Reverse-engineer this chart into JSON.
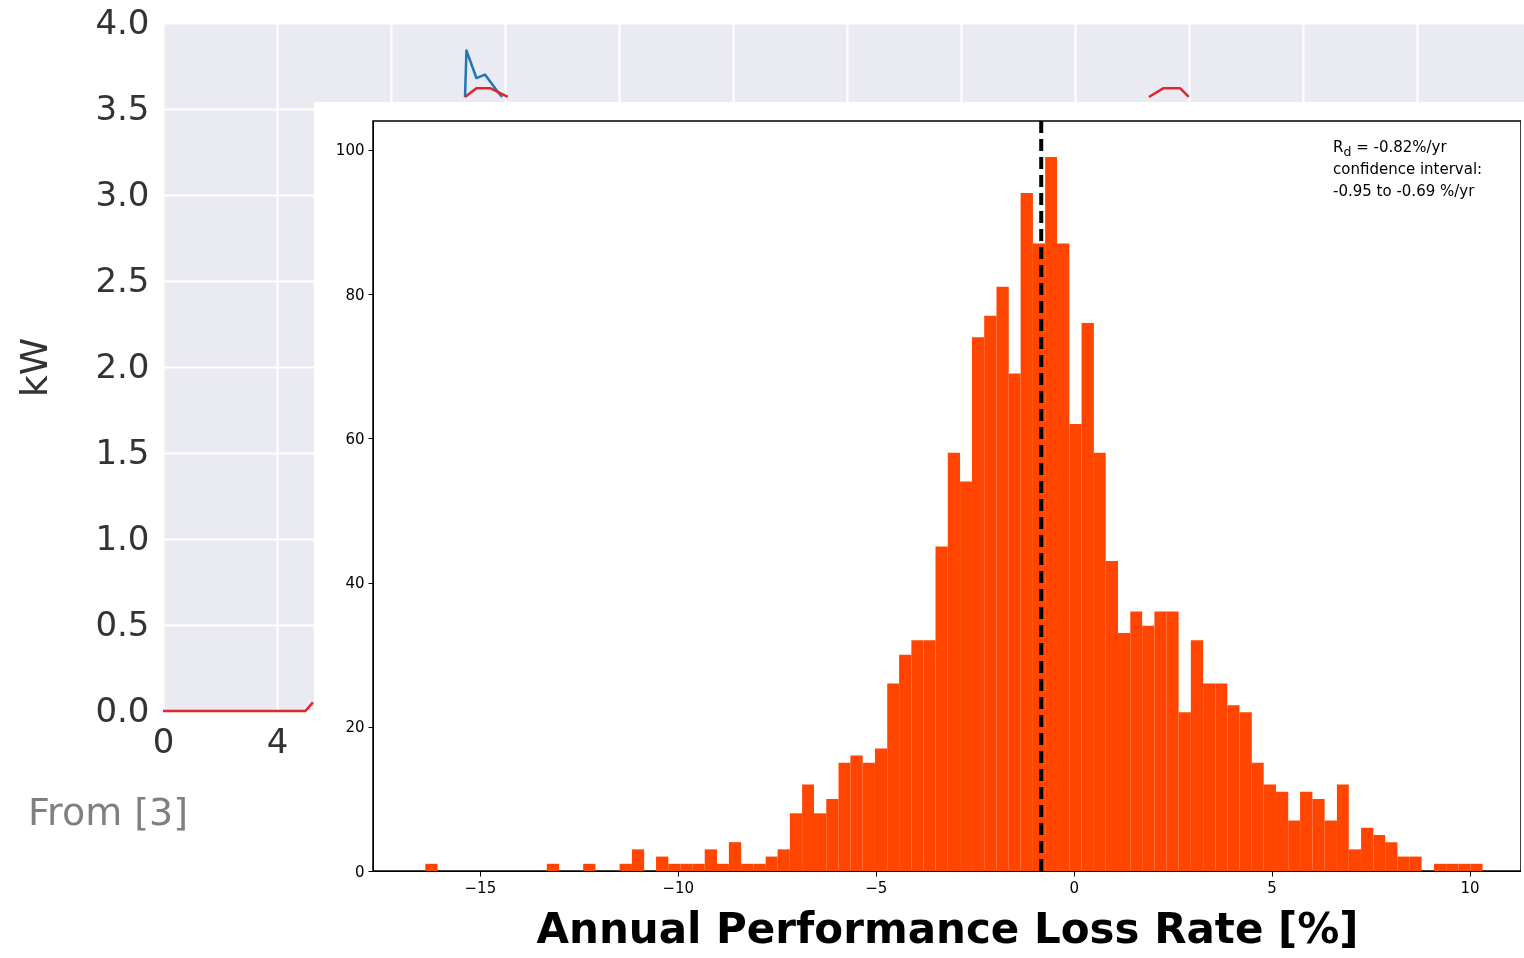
{
  "chart_data": [
    {
      "type": "line",
      "ylabel": "kW",
      "xlim": [
        0,
        47.8
      ],
      "ylim": [
        0,
        4
      ],
      "xticks": [
        0,
        4,
        {
          "value": 8,
          "label": null
        },
        {
          "value": 12,
          "label": null
        },
        {
          "value": 16,
          "label": null
        },
        {
          "value": 20,
          "label": null
        },
        {
          "value": 24,
          "label": null
        },
        {
          "value": 28,
          "label": null
        },
        {
          "value": 32,
          "label": null
        },
        {
          "value": 36,
          "label": null
        },
        {
          "value": 40,
          "label": null
        },
        {
          "value": 44,
          "label": null
        }
      ],
      "yticks": [
        {
          "value": 0,
          "label": "0.0"
        },
        {
          "value": 0.5,
          "label": "0.5"
        },
        {
          "value": 1,
          "label": "1.0"
        },
        {
          "value": 1.5,
          "label": "1.5"
        },
        {
          "value": 2,
          "label": "2.0"
        },
        {
          "value": 2.5,
          "label": "2.5"
        },
        {
          "value": 3,
          "label": "3.0"
        },
        {
          "value": 3.5,
          "label": "3.5"
        },
        {
          "value": 4,
          "label": "4.0"
        }
      ],
      "grid": true,
      "series": [
        {
          "color": "#1f77b4",
          "x": [
            10.6,
            10.65,
            11.0,
            11.3,
            11.7,
            11.9
          ],
          "values": [
            3.57,
            3.84,
            3.68,
            3.7,
            3.61,
            3.57
          ]
        },
        {
          "color": "#e3242b",
          "x": [
            0,
            5.0,
            5.26,
            8,
            10.6,
            11.0,
            11.5,
            12.1,
            20,
            34.6,
            35.1,
            35.7,
            36.0
          ],
          "values": [
            0,
            0,
            0.05,
            null,
            3.57,
            3.62,
            3.62,
            3.57,
            null,
            3.57,
            3.62,
            3.62,
            3.57
          ]
        }
      ],
      "annotations": [
        "From [3]"
      ]
    },
    {
      "type": "histogram",
      "xlabel": "Annual Performance Loss Rate [%]",
      "xlim": [
        -17.7,
        11.3
      ],
      "ylim": [
        0,
        104
      ],
      "xticks": [
        {
          "value": -15,
          "label": "−15"
        },
        {
          "value": -10,
          "label": "−10"
        },
        {
          "value": -5,
          "label": "−5"
        },
        0,
        5,
        10
      ],
      "yticks": [
        0,
        20,
        40,
        60,
        80,
        100
      ],
      "color": "#ff4500",
      "bins": [
        -16.38,
        -16.07,
        -15.77,
        -15.46,
        -15.15,
        -14.85,
        -14.54,
        -14.23,
        -13.92,
        -13.62,
        -13.31,
        -13.0,
        -12.7,
        -12.39,
        -12.08,
        -11.78,
        -11.47,
        -11.16,
        -10.85,
        -10.55,
        -10.24,
        -9.93,
        -9.63,
        -9.32,
        -9.01,
        -8.71,
        -8.4,
        -8.09,
        -7.78,
        -7.48,
        -7.17,
        -6.86,
        -6.56,
        -6.25,
        -5.94,
        -5.64,
        -5.33,
        -5.02,
        -4.71,
        -4.41,
        -4.1,
        -3.79,
        -3.49,
        -3.18,
        -2.87,
        -2.57,
        -2.26,
        -1.95,
        -1.64,
        -1.34,
        -1.03,
        -0.72,
        -0.42,
        -0.11,
        0.2,
        0.51,
        0.81,
        1.12,
        1.43,
        1.73,
        2.04,
        2.35,
        2.65,
        2.96,
        3.27,
        3.58,
        3.88,
        4.19,
        4.5,
        4.8,
        5.11,
        5.42,
        5.72,
        6.03,
        6.34,
        6.65,
        6.95,
        7.26,
        7.57,
        7.87,
        8.18,
        8.49,
        8.79,
        9.1,
        9.41,
        9.72,
        10.02,
        10.33
      ],
      "values": [
        1,
        0,
        0,
        0,
        0,
        0,
        0,
        0,
        0,
        0,
        1,
        0,
        0,
        1,
        0,
        0,
        1,
        3,
        0,
        2,
        1,
        1,
        1,
        3,
        1,
        4,
        1,
        1,
        2,
        3,
        8,
        12,
        8,
        10,
        15,
        16,
        15,
        17,
        26,
        30,
        32,
        32,
        45,
        58,
        54,
        74,
        77,
        81,
        69,
        94,
        87,
        99,
        87,
        62,
        76,
        58,
        43,
        33,
        36,
        34,
        36,
        36,
        22,
        32,
        26,
        26,
        23,
        22,
        15,
        12,
        11,
        7,
        11,
        10,
        7,
        12,
        3,
        6,
        5,
        4,
        2,
        2,
        0,
        1,
        1,
        1,
        1
      ],
      "ref_lines": [
        {
          "axis": "x",
          "value": -0.82,
          "color": "#000000",
          "line_style": "dashed"
        }
      ],
      "annotations": [
        "R$_{d}$ = -0.82%/yr",
        "confidence interval:",
        "-0.95 to -0.69 %/yr"
      ]
    }
  ]
}
